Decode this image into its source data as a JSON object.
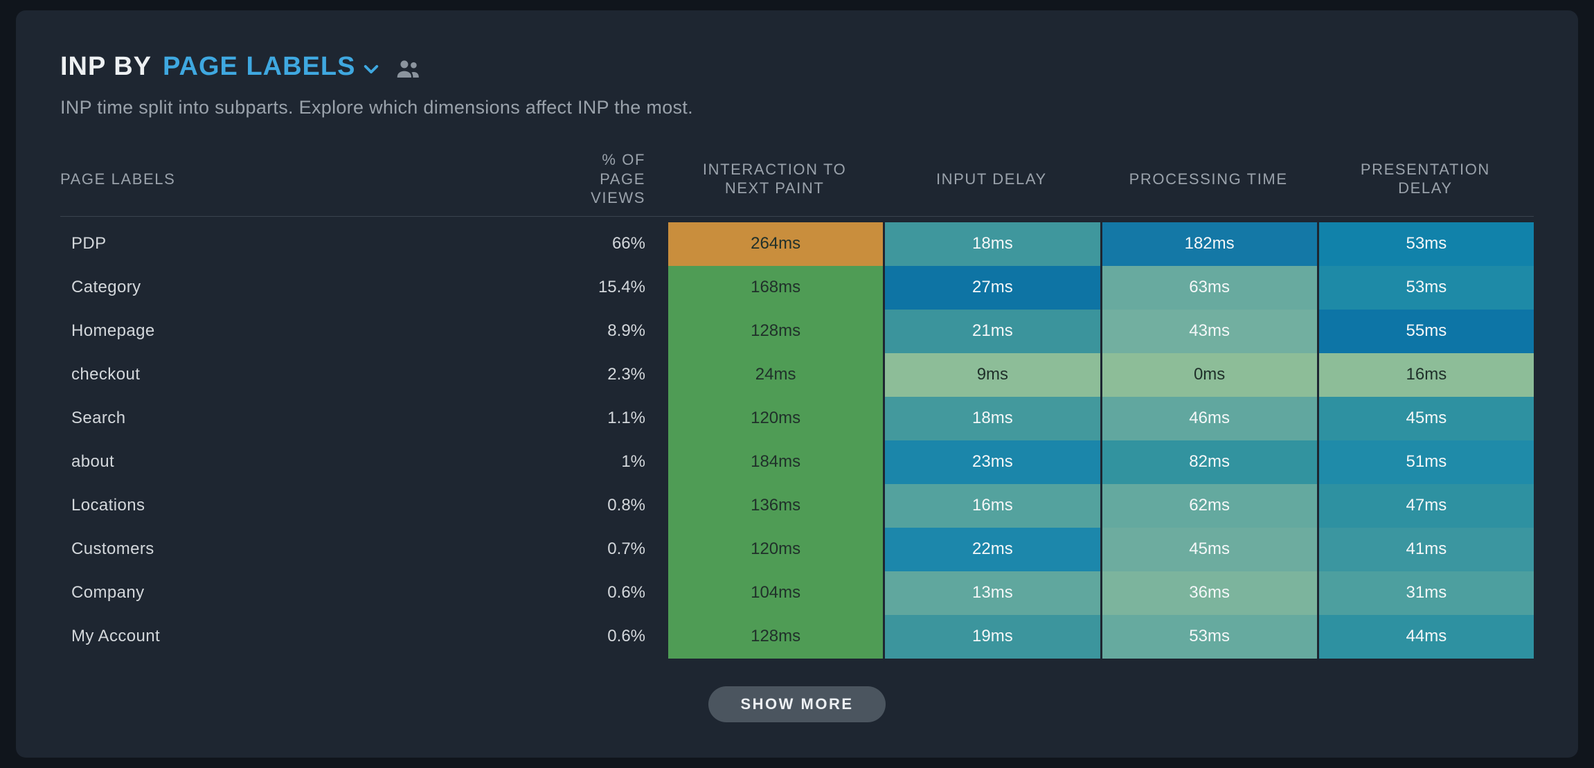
{
  "header": {
    "title_prefix": "INP BY",
    "dimension": "PAGE LABELS",
    "subtitle": "INP time split into subparts. Explore which dimensions affect INP the most."
  },
  "table": {
    "columns": [
      "PAGE LABELS",
      "% OF PAGE VIEWS",
      "INTERACTION TO NEXT PAINT",
      "INPUT DELAY",
      "PROCESSING TIME",
      "PRESENTATION DELAY"
    ],
    "rows": [
      {
        "label": "PDP",
        "views": "66%",
        "cells": [
          {
            "value": "264ms",
            "bg": "#c98e3d",
            "text": "dark"
          },
          {
            "value": "18ms",
            "bg": "#3f979d",
            "text": "light"
          },
          {
            "value": "182ms",
            "bg": "#1478a6",
            "text": "light"
          },
          {
            "value": "53ms",
            "bg": "#1182aa",
            "text": "light"
          }
        ]
      },
      {
        "label": "Category",
        "views": "15.4%",
        "cells": [
          {
            "value": "168ms",
            "bg": "#4f9c55",
            "text": "dark"
          },
          {
            "value": "27ms",
            "bg": "#0e74a4",
            "text": "light"
          },
          {
            "value": "63ms",
            "bg": "#68aa9f",
            "text": "light"
          },
          {
            "value": "53ms",
            "bg": "#1e8aa7",
            "text": "light"
          }
        ]
      },
      {
        "label": "Homepage",
        "views": "8.9%",
        "cells": [
          {
            "value": "128ms",
            "bg": "#4f9c55",
            "text": "dark"
          },
          {
            "value": "21ms",
            "bg": "#3b949c",
            "text": "light"
          },
          {
            "value": "43ms",
            "bg": "#72afa0",
            "text": "light"
          },
          {
            "value": "55ms",
            "bg": "#0d75a6",
            "text": "light"
          }
        ]
      },
      {
        "label": "checkout",
        "views": "2.3%",
        "cells": [
          {
            "value": "24ms",
            "bg": "#4f9c55",
            "text": "dark"
          },
          {
            "value": "9ms",
            "bg": "#8dbd98",
            "text": "dark"
          },
          {
            "value": "0ms",
            "bg": "#8dbd98",
            "text": "dark"
          },
          {
            "value": "16ms",
            "bg": "#8dbd98",
            "text": "dark"
          }
        ]
      },
      {
        "label": "Search",
        "views": "1.1%",
        "cells": [
          {
            "value": "120ms",
            "bg": "#4f9c55",
            "text": "dark"
          },
          {
            "value": "18ms",
            "bg": "#43999d",
            "text": "light"
          },
          {
            "value": "46ms",
            "bg": "#61a79f",
            "text": "light"
          },
          {
            "value": "45ms",
            "bg": "#2e91a1",
            "text": "light"
          }
        ]
      },
      {
        "label": "about",
        "views": "1%",
        "cells": [
          {
            "value": "184ms",
            "bg": "#4f9c55",
            "text": "dark"
          },
          {
            "value": "23ms",
            "bg": "#1b86aa",
            "text": "light"
          },
          {
            "value": "82ms",
            "bg": "#32939f",
            "text": "light"
          },
          {
            "value": "51ms",
            "bg": "#1f8ba9",
            "text": "light"
          }
        ]
      },
      {
        "label": "Locations",
        "views": "0.8%",
        "cells": [
          {
            "value": "136ms",
            "bg": "#4f9c55",
            "text": "dark"
          },
          {
            "value": "16ms",
            "bg": "#54a29e",
            "text": "light"
          },
          {
            "value": "62ms",
            "bg": "#64a99f",
            "text": "light"
          },
          {
            "value": "47ms",
            "bg": "#2e91a1",
            "text": "light"
          }
        ]
      },
      {
        "label": "Customers",
        "views": "0.7%",
        "cells": [
          {
            "value": "120ms",
            "bg": "#4f9c55",
            "text": "dark"
          },
          {
            "value": "22ms",
            "bg": "#1c87ab",
            "text": "light"
          },
          {
            "value": "45ms",
            "bg": "#6dac9f",
            "text": "light"
          },
          {
            "value": "41ms",
            "bg": "#3b96a0",
            "text": "light"
          }
        ]
      },
      {
        "label": "Company",
        "views": "0.6%",
        "cells": [
          {
            "value": "104ms",
            "bg": "#4f9c55",
            "text": "dark"
          },
          {
            "value": "13ms",
            "bg": "#60a79e",
            "text": "light"
          },
          {
            "value": "36ms",
            "bg": "#7cb49d",
            "text": "light"
          },
          {
            "value": "31ms",
            "bg": "#4d9f9f",
            "text": "light"
          }
        ]
      },
      {
        "label": "My Account",
        "views": "0.6%",
        "cells": [
          {
            "value": "128ms",
            "bg": "#4f9c55",
            "text": "dark"
          },
          {
            "value": "19ms",
            "bg": "#3c959d",
            "text": "light"
          },
          {
            "value": "53ms",
            "bg": "#66aa9f",
            "text": "light"
          },
          {
            "value": "44ms",
            "bg": "#2e91a1",
            "text": "light"
          }
        ]
      }
    ]
  },
  "footer": {
    "show_more_label": "SHOW MORE"
  },
  "icons": {
    "chevron": "chevron-down-icon",
    "users": "users-icon"
  },
  "colors": {
    "page_bg": "#10151c",
    "card_bg": "#1e2631",
    "accent_blue": "#3fa8e0",
    "inp_warn_orange": "#c98e3d",
    "inp_good_green": "#4f9c55",
    "pale_cell_green": "#8dbd98"
  }
}
